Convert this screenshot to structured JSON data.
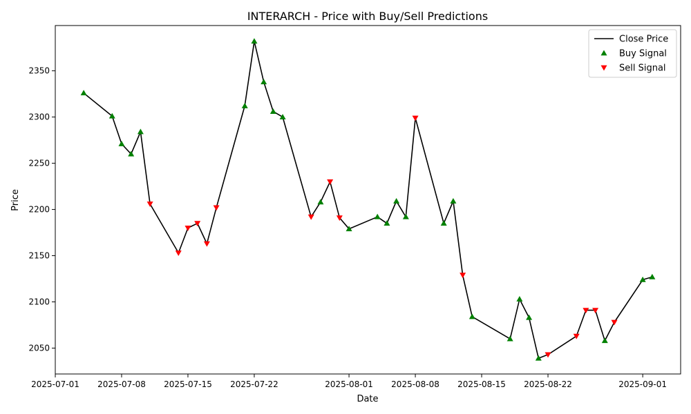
{
  "chart_data": {
    "type": "line",
    "title": "INTERARCH - Price with Buy/Sell Predictions",
    "xlabel": "Date",
    "ylabel": "Price",
    "xlim": [
      "2025-07-01",
      "2025-09-05"
    ],
    "ylim": [
      2022,
      2399
    ],
    "x_ticks": [
      "2025-07-01",
      "2025-07-08",
      "2025-07-15",
      "2025-07-22",
      "2025-08-01",
      "2025-08-08",
      "2025-08-15",
      "2025-08-22",
      "2025-09-01"
    ],
    "y_ticks": [
      2050,
      2100,
      2150,
      2200,
      2250,
      2300,
      2350
    ],
    "grid": false,
    "legend_position": "top-right",
    "legend": [
      {
        "label": "Close Price",
        "kind": "line",
        "color": "#000000"
      },
      {
        "label": "Buy Signal",
        "kind": "up-triangle",
        "color": "#008000"
      },
      {
        "label": "Sell Signal",
        "kind": "down-triangle",
        "color": "#ff0000"
      }
    ],
    "series": [
      {
        "name": "Close Price",
        "color": "#000000",
        "points": [
          {
            "date": "2025-07-04",
            "price": 2326,
            "signal": "buy"
          },
          {
            "date": "2025-07-07",
            "price": 2301,
            "signal": "buy"
          },
          {
            "date": "2025-07-08",
            "price": 2271,
            "signal": "buy"
          },
          {
            "date": "2025-07-09",
            "price": 2260,
            "signal": "buy"
          },
          {
            "date": "2025-07-10",
            "price": 2284,
            "signal": "buy"
          },
          {
            "date": "2025-07-11",
            "price": 2206,
            "signal": "sell"
          },
          {
            "date": "2025-07-14",
            "price": 2153,
            "signal": "sell"
          },
          {
            "date": "2025-07-15",
            "price": 2180,
            "signal": "sell"
          },
          {
            "date": "2025-07-16",
            "price": 2185,
            "signal": "sell"
          },
          {
            "date": "2025-07-17",
            "price": 2163,
            "signal": "sell"
          },
          {
            "date": "2025-07-18",
            "price": 2202,
            "signal": "sell"
          },
          {
            "date": "2025-07-21",
            "price": 2312,
            "signal": "buy"
          },
          {
            "date": "2025-07-22",
            "price": 2382,
            "signal": "buy"
          },
          {
            "date": "2025-07-23",
            "price": 2338,
            "signal": "buy"
          },
          {
            "date": "2025-07-24",
            "price": 2306,
            "signal": "buy"
          },
          {
            "date": "2025-07-25",
            "price": 2300,
            "signal": "buy"
          },
          {
            "date": "2025-07-28",
            "price": 2192,
            "signal": "sell"
          },
          {
            "date": "2025-07-29",
            "price": 2208,
            "signal": "buy"
          },
          {
            "date": "2025-07-30",
            "price": 2230,
            "signal": "sell"
          },
          {
            "date": "2025-07-31",
            "price": 2191,
            "signal": "sell"
          },
          {
            "date": "2025-08-01",
            "price": 2179,
            "signal": "buy"
          },
          {
            "date": "2025-08-04",
            "price": 2192,
            "signal": "buy"
          },
          {
            "date": "2025-08-05",
            "price": 2185,
            "signal": "buy"
          },
          {
            "date": "2025-08-06",
            "price": 2209,
            "signal": "buy"
          },
          {
            "date": "2025-08-07",
            "price": 2192,
            "signal": "buy"
          },
          {
            "date": "2025-08-08",
            "price": 2299,
            "signal": "sell"
          },
          {
            "date": "2025-08-11",
            "price": 2185,
            "signal": "buy"
          },
          {
            "date": "2025-08-12",
            "price": 2209,
            "signal": "buy"
          },
          {
            "date": "2025-08-13",
            "price": 2129,
            "signal": "sell"
          },
          {
            "date": "2025-08-14",
            "price": 2084,
            "signal": "buy"
          },
          {
            "date": "2025-08-18",
            "price": 2060,
            "signal": "buy"
          },
          {
            "date": "2025-08-19",
            "price": 2103,
            "signal": "buy"
          },
          {
            "date": "2025-08-20",
            "price": 2083,
            "signal": "buy"
          },
          {
            "date": "2025-08-21",
            "price": 2039,
            "signal": "buy"
          },
          {
            "date": "2025-08-22",
            "price": 2043,
            "signal": "sell"
          },
          {
            "date": "2025-08-25",
            "price": 2063,
            "signal": "sell"
          },
          {
            "date": "2025-08-26",
            "price": 2091,
            "signal": "sell"
          },
          {
            "date": "2025-08-27",
            "price": 2091,
            "signal": "sell"
          },
          {
            "date": "2025-08-28",
            "price": 2058,
            "signal": "buy"
          },
          {
            "date": "2025-08-29",
            "price": 2078,
            "signal": "sell"
          },
          {
            "date": "2025-09-01",
            "price": 2124,
            "signal": "buy"
          },
          {
            "date": "2025-09-02",
            "price": 2127,
            "signal": "buy"
          }
        ]
      }
    ]
  }
}
